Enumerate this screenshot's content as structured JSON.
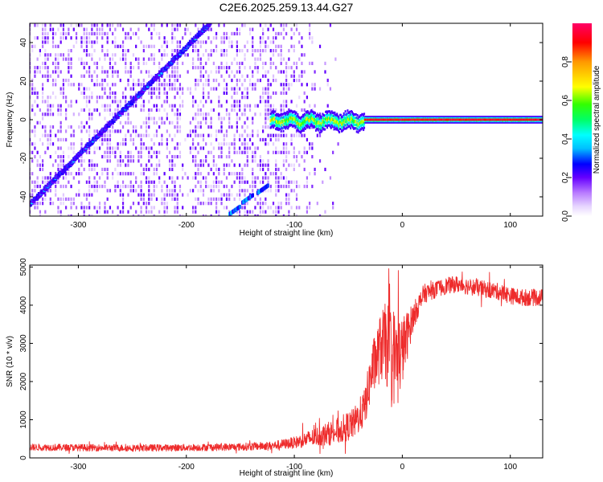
{
  "figure_title": "C2E6.2025.259.13.44.G27",
  "colors": {
    "snr_line": "#ee2b2b",
    "axis": "#000000",
    "grid": "#000000",
    "colormap": [
      "#ffffff",
      "#e7d6ff",
      "#b97cff",
      "#8a2be2",
      "#6600ff",
      "#0000ff",
      "#00bfff",
      "#00ffff",
      "#00ff66",
      "#33ff00",
      "#ffff00",
      "#ff9900",
      "#ff0000",
      "#ff0066"
    ]
  },
  "chart_data": [
    {
      "type": "heatmap",
      "name": "spectrogram",
      "xlabel": "Height of straight line (km)",
      "ylabel": "Frequency (Hz)",
      "xlim": [
        -345,
        130
      ],
      "ylim": [
        -50,
        50
      ],
      "xticks": [
        -300,
        -200,
        -100,
        0,
        100
      ],
      "yticks": [
        -40,
        -20,
        0,
        20,
        40
      ],
      "colorbar": {
        "label": "Normalized spectral amplitude",
        "range": [
          0,
          1
        ],
        "ticks": [
          "0.0",
          "0.2",
          "0.4",
          "0.6",
          "0.8"
        ]
      },
      "features": {
        "diagonal_track": {
          "from": {
            "x": -345,
            "y": -44
          },
          "to": {
            "x": -178,
            "y": 50
          },
          "peak_amplitude": 0.45
        },
        "lower_fragments": [
          {
            "x_from": -160,
            "x_to": -150,
            "y": -49
          },
          {
            "x_from": -148,
            "x_to": -138,
            "y": -43
          },
          {
            "x_from": -134,
            "x_to": -124,
            "y": -38
          }
        ],
        "zero_line": {
          "x_from": -122,
          "x_to": 130,
          "y": 0,
          "wobble_end": -35,
          "peak_amplitude": 1.0
        },
        "noise_region": {
          "x_from": -345,
          "x_to": -55,
          "density": "dense to -120, sparse to -55"
        }
      }
    },
    {
      "type": "line",
      "name": "snr",
      "xlabel": "Height of straight line (km)",
      "ylabel": "SNR (10 * v/v)",
      "xlim": [
        -345,
        130
      ],
      "ylim": [
        0,
        5050
      ],
      "xticks": [
        -300,
        -200,
        -100,
        0,
        100
      ],
      "yticks": [
        0,
        1000,
        2000,
        3000,
        4000,
        5000
      ],
      "series": [
        {
          "x": [
            -345,
            -300,
            -250,
            -200,
            -150,
            -120,
            -100,
            -80,
            -60,
            -45,
            -35,
            -28,
            -20,
            -15,
            -10,
            -5,
            0,
            10,
            20,
            30,
            40,
            50,
            60,
            70,
            80,
            90,
            100,
            110,
            120,
            130
          ],
          "y": [
            280,
            270,
            260,
            270,
            290,
            320,
            400,
            550,
            700,
            900,
            1300,
            2300,
            2900,
            3000,
            2700,
            2600,
            2800,
            3700,
            4300,
            4400,
            4500,
            4550,
            4500,
            4450,
            4400,
            4350,
            4250,
            4200,
            4200,
            4200
          ],
          "noise_amplitude": [
            90,
            90,
            90,
            90,
            100,
            110,
            150,
            250,
            350,
            400,
            500,
            700,
            900,
            1100,
            1300,
            1300,
            900,
            350,
            250,
            220,
            220,
            220,
            220,
            220,
            220,
            220,
            220,
            220,
            220,
            220
          ]
        }
      ]
    }
  ]
}
